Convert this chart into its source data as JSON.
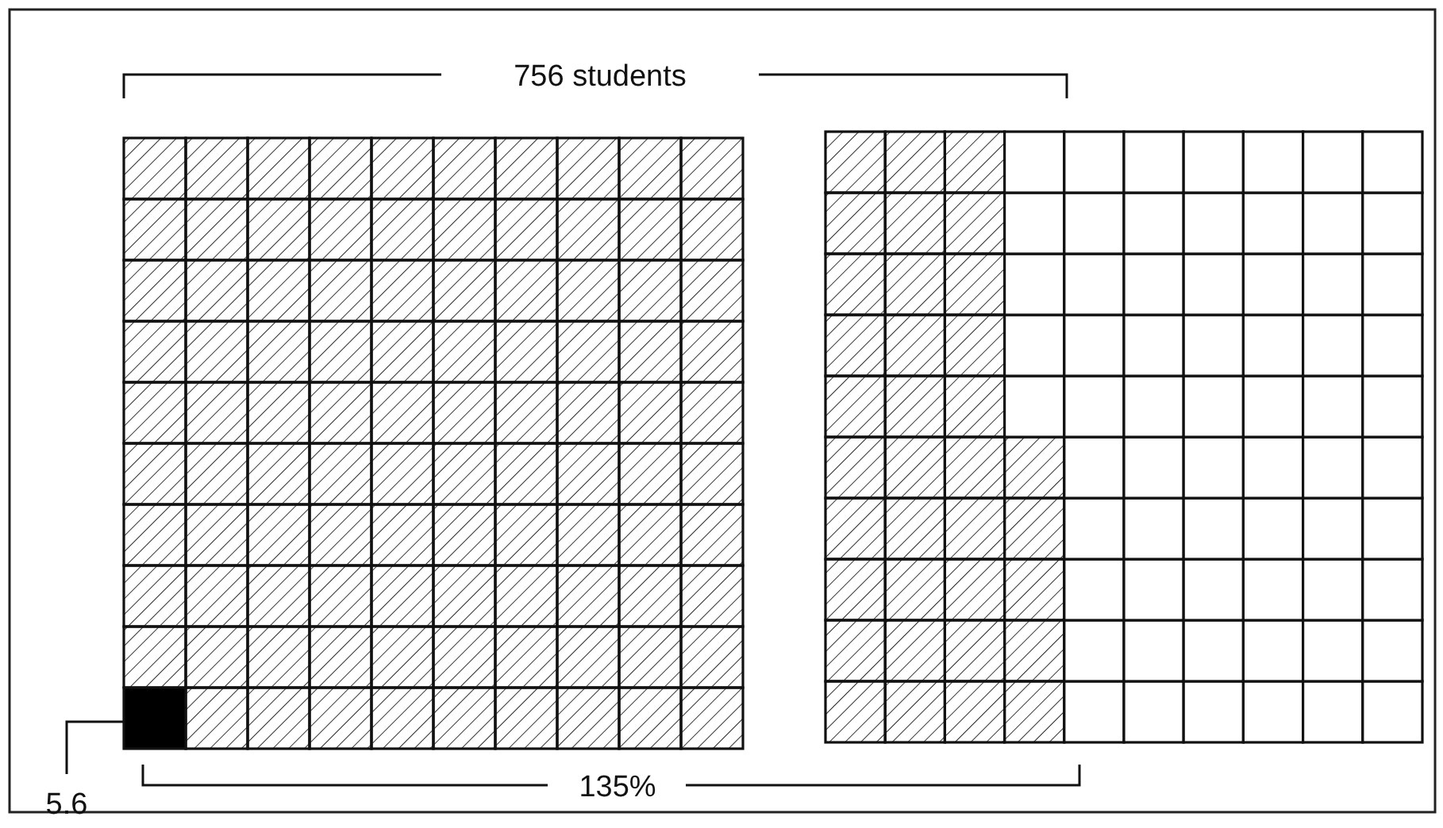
{
  "chart_data": {
    "type": "other",
    "values": [
      135
    ],
    "value_labels": [
      "135%"
    ],
    "annotations": [
      "756 students",
      "5.6"
    ]
  }
}
